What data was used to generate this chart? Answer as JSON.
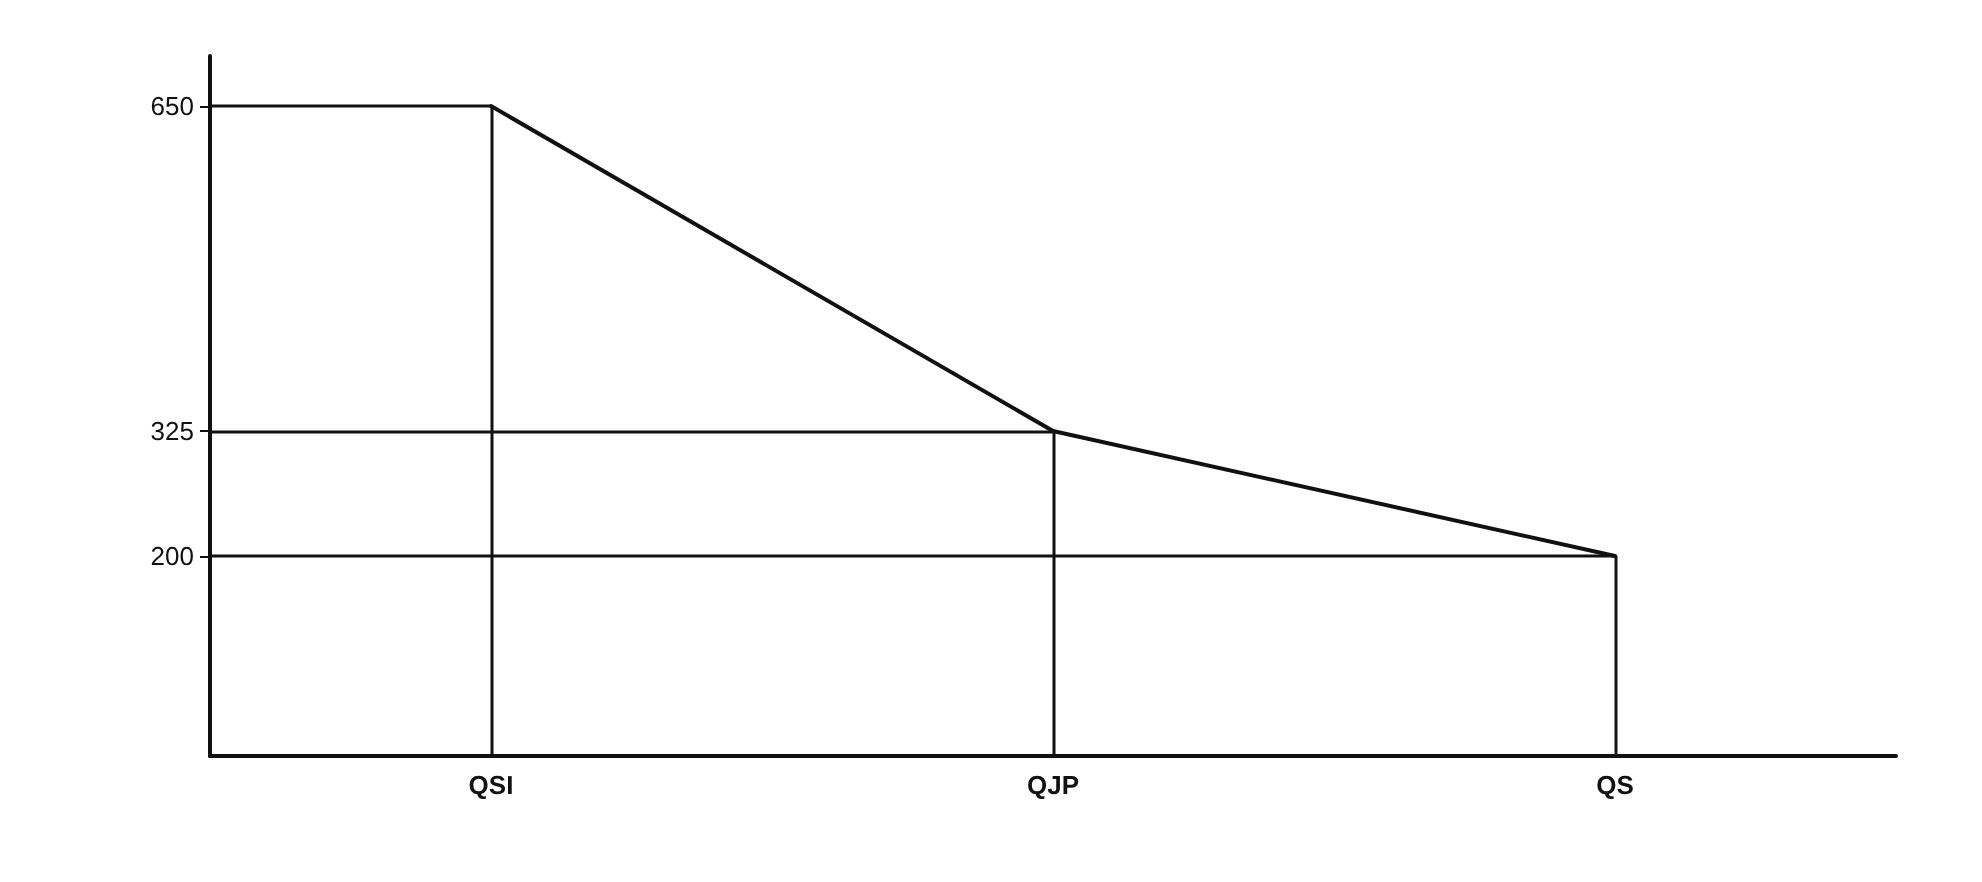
{
  "chart_data": {
    "type": "line",
    "categories": [
      "QSI",
      "QJP",
      "QS"
    ],
    "series": [
      {
        "color": "#111111",
        "values": [
          650,
          325,
          200
        ]
      }
    ],
    "ylim": [
      0,
      700
    ],
    "yticks": [
      200,
      325,
      650
    ],
    "ref_lines": [
      {
        "axis": "y",
        "value": 650
      },
      {
        "axis": "y",
        "value": 325
      },
      {
        "axis": "y",
        "value": 200
      },
      {
        "axis": "x",
        "value": "QSI"
      },
      {
        "axis": "x",
        "value": "QJP"
      },
      {
        "axis": "x",
        "value": "QS"
      }
    ],
    "marker": "none",
    "line_style": "solid"
  }
}
